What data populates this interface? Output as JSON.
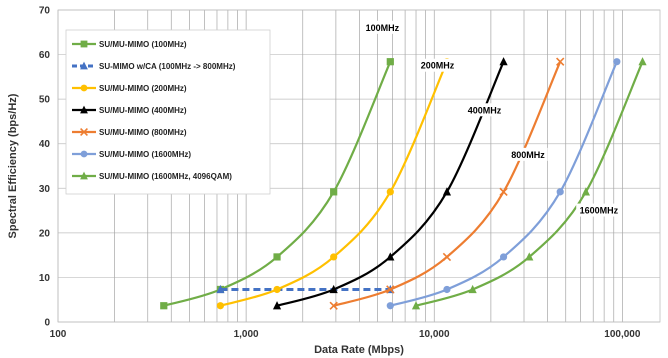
{
  "chart_data": {
    "type": "line",
    "xscale": "log",
    "xlabel": "Data Rate (Mbps)",
    "ylabel": "Spectral Efficiency (bps/Hz)",
    "xlim": [
      100,
      158500
    ],
    "ylim": [
      0,
      70
    ],
    "xticks": [
      100,
      1000,
      10000,
      100000
    ],
    "xtick_labels": [
      "100",
      "1,000",
      "10,000",
      "100,000"
    ],
    "yticks": [
      0,
      10,
      20,
      30,
      40,
      50,
      60,
      70
    ],
    "grid": true,
    "legend_position": "upper-left",
    "series": [
      {
        "name": "SU/MU-MIMO (100MHz)",
        "color": "#70AD47",
        "marker": "square",
        "dashed": false,
        "x": [
          365,
          730,
          1460,
          2920,
          5840
        ],
        "y": [
          3.65,
          7.3,
          14.6,
          29.2,
          58.4
        ]
      },
      {
        "name": "SU-MIMO w/CA (100MHz -> 800MHz)",
        "color": "#4472C4",
        "marker": "triangle",
        "dashed": true,
        "x": [
          730,
          5840
        ],
        "y": [
          7.3,
          7.3
        ]
      },
      {
        "name": "SU/MU-MIMO (200MHz)",
        "color": "#FFC000",
        "marker": "circle",
        "dashed": false,
        "x": [
          730,
          1460,
          2920,
          5840,
          11680
        ],
        "y": [
          3.65,
          7.3,
          14.6,
          29.2,
          58.4
        ]
      },
      {
        "name": "SU/MU-MIMO (400MHz)",
        "color": "#000000",
        "marker": "triangle",
        "dashed": false,
        "x": [
          1460,
          2920,
          5840,
          11680,
          23360
        ],
        "y": [
          3.65,
          7.3,
          14.6,
          29.2,
          58.4
        ]
      },
      {
        "name": "SU/MU-MIMO (800MHz)",
        "color": "#ED7D31",
        "marker": "x",
        "dashed": false,
        "x": [
          2920,
          5840,
          11680,
          23360,
          46720
        ],
        "y": [
          3.65,
          7.3,
          14.6,
          29.2,
          58.4
        ]
      },
      {
        "name": "SU/MU-MIMO (1600MHz)",
        "color": "#7F9FD9",
        "marker": "circle",
        "dashed": false,
        "x": [
          5840,
          11680,
          23360,
          46720,
          93440
        ],
        "y": [
          3.65,
          7.3,
          14.6,
          29.2,
          58.4
        ]
      },
      {
        "name": "SU/MU-MIMO (1600MHz, 4096QAM)",
        "color": "#70AD47",
        "marker": "triangle",
        "dashed": false,
        "x": [
          8000,
          16000,
          32000,
          64000,
          128000
        ],
        "y": [
          3.65,
          7.3,
          14.6,
          29.2,
          58.4
        ]
      }
    ],
    "annotations": [
      {
        "text": "100MHz",
        "x": 5300,
        "y": 66
      },
      {
        "text": "200MHz",
        "x": 10400,
        "y": 57.5
      },
      {
        "text": "400MHz",
        "x": 18500,
        "y": 47.5
      },
      {
        "text": "800MHz",
        "x": 31500,
        "y": 37.5
      },
      {
        "text": "1600MHz",
        "x": 75000,
        "y": 25
      }
    ]
  }
}
